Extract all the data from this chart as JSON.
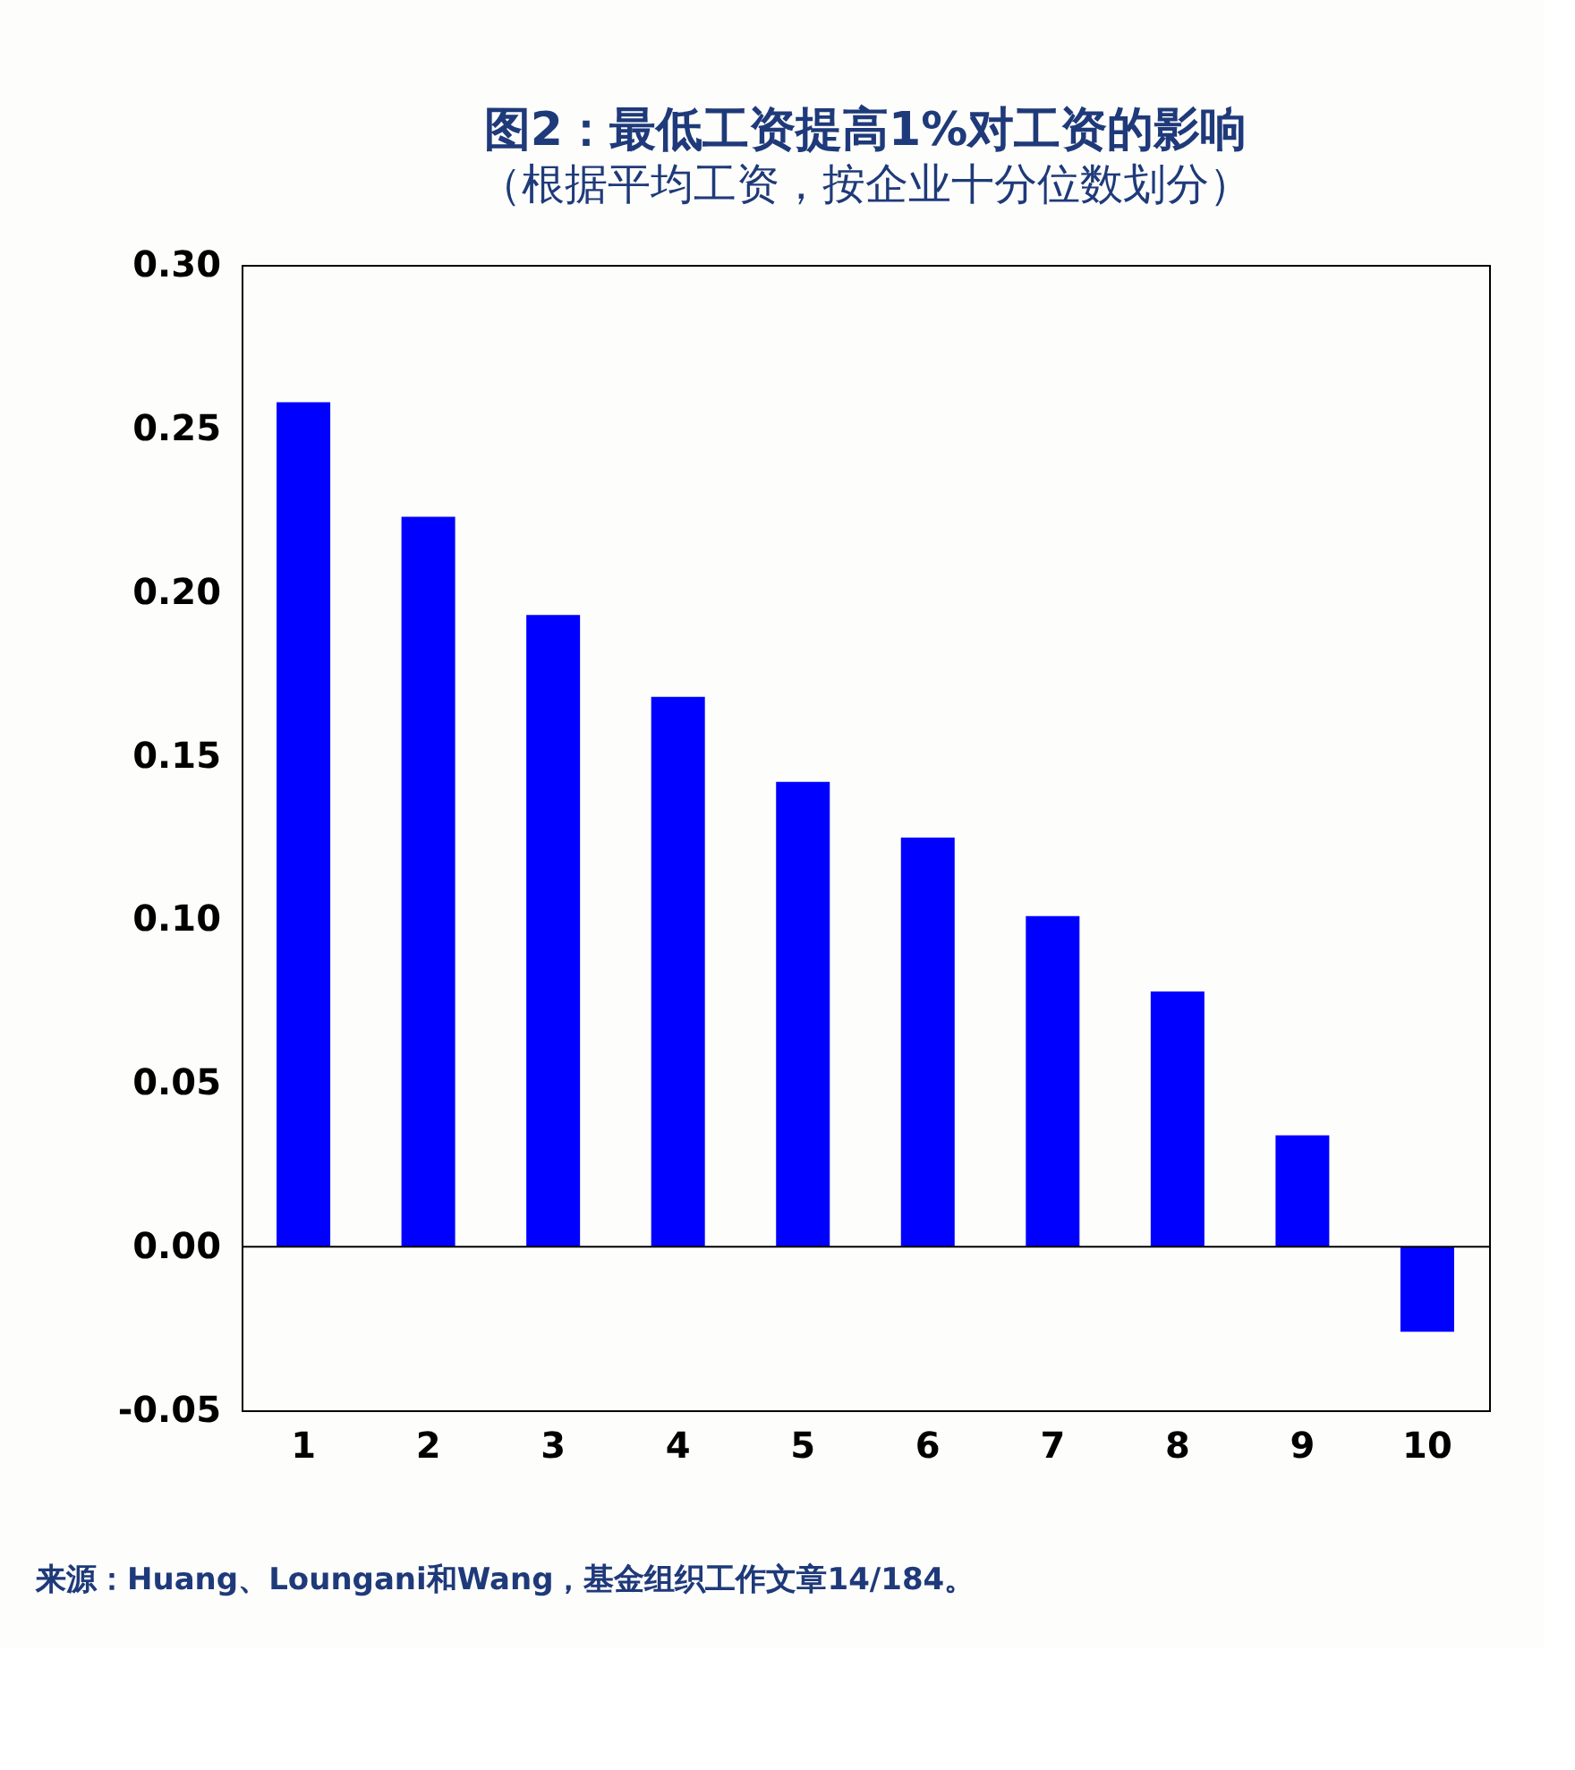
{
  "chart_data": {
    "type": "bar",
    "title": "图2：最低工资提高1%对工资的影响",
    "subtitle": "（根据平均工资，按企业十分位数划分）",
    "categories": [
      "1",
      "2",
      "3",
      "4",
      "5",
      "6",
      "7",
      "8",
      "9",
      "10"
    ],
    "values": [
      0.258,
      0.223,
      0.193,
      0.168,
      0.142,
      0.125,
      0.101,
      0.078,
      0.034,
      -0.026
    ],
    "color": "#0000ff",
    "ylim": [
      -0.05,
      0.3
    ],
    "yticks": [
      {
        "value": -0.05,
        "label": "-0.05"
      },
      {
        "value": 0,
        "label": "0.00"
      },
      {
        "value": 0.05,
        "label": "0.05"
      },
      {
        "value": 0.1,
        "label": "0.10"
      },
      {
        "value": 0.15,
        "label": "0.15"
      },
      {
        "value": 0.2,
        "label": "0.20"
      },
      {
        "value": 0.25,
        "label": "0.25"
      },
      {
        "value": 0.3,
        "label": "0.30"
      }
    ],
    "grid": false,
    "ref_lines": [
      {
        "axis": "y",
        "value": 0,
        "color": "#000000"
      }
    ],
    "annotations": [
      "来源：Huang、Loungani和Wang，基金组织工作文章14/184。"
    ]
  }
}
